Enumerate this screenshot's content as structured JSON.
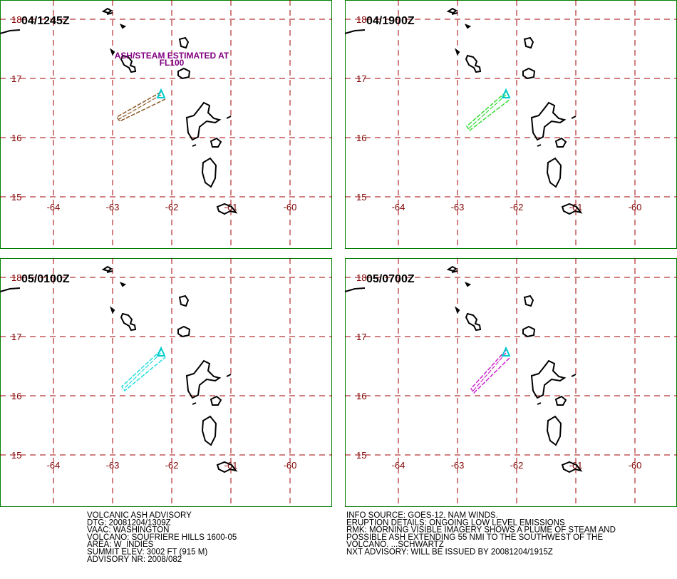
{
  "panels": [
    {
      "time": "04/1245Z",
      "annotation": [
        "ASH/STEAM ESTIMATED AT",
        "FL100"
      ]
    },
    {
      "time": "04/1900Z"
    },
    {
      "time": "05/0100Z"
    },
    {
      "time": "05/0700Z"
    }
  ],
  "grid": {
    "lat": [
      18,
      17,
      16,
      15
    ],
    "lon": [
      -64,
      -63,
      -62,
      -61,
      -60
    ]
  },
  "advisory": {
    "left": [
      "VOLCANIC ASH ADVISORY",
      "DTG: 20081204/1309Z",
      "VAAC: WASHINGTON",
      "VOLCANO: SOUFRIERE HILLS 1600-05",
      "AREA: W_INDIES",
      "SUMMIT ELEV: 3002 FT (915 M)",
      "ADVISORY NR: 2008/082"
    ],
    "right": [
      "INFO SOURCE: GOES-12. NAM WINDS.",
      "ERUPTION DETAILS: ONGOING LOW LEVEL EMISSIONS",
      "RMK: MORNING VISIBLE IMAGERY SHOWS A PLUME OF STEAM AND",
      "POSSIBLE ASH EXTENDING 55 NMI TO THE SOUTHWEST OF THE",
      "VOLCANO. ...SCHWARTZ",
      "NXT ADVISORY: WILL BE ISSUED BY 20081204/1915Z"
    ]
  }
}
